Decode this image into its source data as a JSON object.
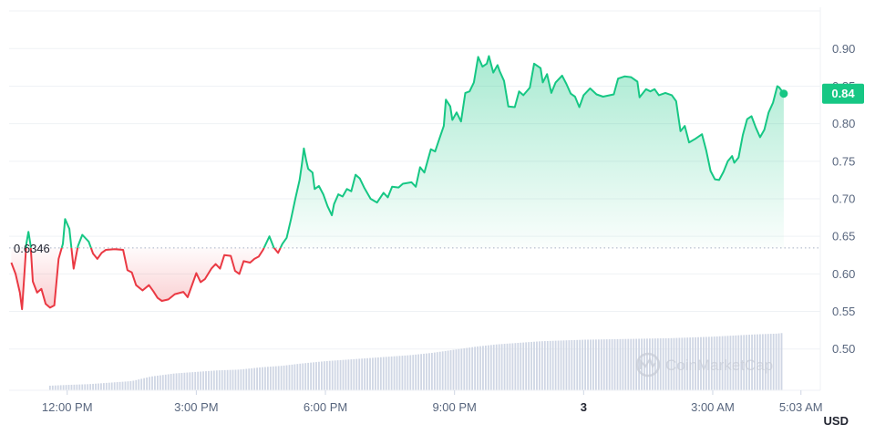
{
  "chart_data": {
    "type": "area",
    "currency": "USD",
    "open_price": 0.6346,
    "open_price_label": "0.6346",
    "current_price": 0.84,
    "current_price_label": "0.84",
    "ylim": [
      0.445,
      0.955
    ],
    "yticks": [
      {
        "value": 0.9,
        "label": "0.90"
      },
      {
        "value": 0.85,
        "label": "0.85"
      },
      {
        "value": 0.8,
        "label": "0.80"
      },
      {
        "value": 0.75,
        "label": "0.75"
      },
      {
        "value": 0.7,
        "label": "0.70"
      },
      {
        "value": 0.65,
        "label": "0.65"
      },
      {
        "value": 0.6,
        "label": "0.60"
      },
      {
        "value": 0.55,
        "label": "0.55"
      },
      {
        "value": 0.5,
        "label": "0.50"
      }
    ],
    "xlim_hours": [
      10.65,
      29.5
    ],
    "xticks": [
      {
        "t": 12.0,
        "label": "12:00 PM",
        "bold": false
      },
      {
        "t": 15.0,
        "label": "3:00 PM",
        "bold": false
      },
      {
        "t": 18.0,
        "label": "6:00 PM",
        "bold": false
      },
      {
        "t": 21.0,
        "label": "9:00 PM",
        "bold": false
      },
      {
        "t": 24.0,
        "label": "3",
        "bold": true
      },
      {
        "t": 27.0,
        "label": "3:00 AM",
        "bold": false
      },
      {
        "t": 29.05,
        "label": "5:03 AM",
        "bold": false
      }
    ],
    "grid": true,
    "colors": {
      "up": "#16c784",
      "down": "#ea3943",
      "volume": "#cfd6e4",
      "grid": "#eff2f5"
    },
    "price_points": [
      [
        10.7,
        0.615
      ],
      [
        10.8,
        0.6
      ],
      [
        10.9,
        0.575
      ],
      [
        10.95,
        0.553
      ],
      [
        11.0,
        0.595
      ],
      [
        11.05,
        0.64
      ],
      [
        11.1,
        0.656
      ],
      [
        11.15,
        0.638
      ],
      [
        11.2,
        0.59
      ],
      [
        11.3,
        0.575
      ],
      [
        11.4,
        0.58
      ],
      [
        11.5,
        0.56
      ],
      [
        11.6,
        0.555
      ],
      [
        11.7,
        0.558
      ],
      [
        11.8,
        0.62
      ],
      [
        11.9,
        0.64
      ],
      [
        11.95,
        0.673
      ],
      [
        12.05,
        0.66
      ],
      [
        12.15,
        0.607
      ],
      [
        12.25,
        0.637
      ],
      [
        12.35,
        0.652
      ],
      [
        12.5,
        0.643
      ],
      [
        12.6,
        0.627
      ],
      [
        12.7,
        0.62
      ],
      [
        12.8,
        0.628
      ],
      [
        12.9,
        0.632
      ],
      [
        13.1,
        0.633
      ],
      [
        13.3,
        0.632
      ],
      [
        13.4,
        0.605
      ],
      [
        13.5,
        0.602
      ],
      [
        13.6,
        0.585
      ],
      [
        13.75,
        0.578
      ],
      [
        13.9,
        0.585
      ],
      [
        14.0,
        0.577
      ],
      [
        14.1,
        0.568
      ],
      [
        14.2,
        0.564
      ],
      [
        14.35,
        0.566
      ],
      [
        14.5,
        0.573
      ],
      [
        14.7,
        0.576
      ],
      [
        14.8,
        0.569
      ],
      [
        15.0,
        0.601
      ],
      [
        15.1,
        0.589
      ],
      [
        15.2,
        0.593
      ],
      [
        15.35,
        0.607
      ],
      [
        15.45,
        0.613
      ],
      [
        15.55,
        0.607
      ],
      [
        15.65,
        0.625
      ],
      [
        15.8,
        0.624
      ],
      [
        15.9,
        0.604
      ],
      [
        16.0,
        0.6
      ],
      [
        16.1,
        0.617
      ],
      [
        16.25,
        0.615
      ],
      [
        16.35,
        0.62
      ],
      [
        16.45,
        0.623
      ],
      [
        16.55,
        0.632
      ],
      [
        16.7,
        0.65
      ],
      [
        16.8,
        0.635
      ],
      [
        16.9,
        0.628
      ],
      [
        17.0,
        0.64
      ],
      [
        17.1,
        0.648
      ],
      [
        17.2,
        0.673
      ],
      [
        17.3,
        0.7
      ],
      [
        17.4,
        0.725
      ],
      [
        17.45,
        0.745
      ],
      [
        17.5,
        0.767
      ],
      [
        17.55,
        0.752
      ],
      [
        17.6,
        0.74
      ],
      [
        17.7,
        0.735
      ],
      [
        17.75,
        0.713
      ],
      [
        17.85,
        0.717
      ],
      [
        17.95,
        0.706
      ],
      [
        18.05,
        0.69
      ],
      [
        18.15,
        0.678
      ],
      [
        18.2,
        0.693
      ],
      [
        18.3,
        0.706
      ],
      [
        18.4,
        0.703
      ],
      [
        18.5,
        0.713
      ],
      [
        18.6,
        0.71
      ],
      [
        18.7,
        0.732
      ],
      [
        18.8,
        0.727
      ],
      [
        18.9,
        0.715
      ],
      [
        19.05,
        0.7
      ],
      [
        19.2,
        0.695
      ],
      [
        19.35,
        0.708
      ],
      [
        19.45,
        0.702
      ],
      [
        19.55,
        0.716
      ],
      [
        19.7,
        0.715
      ],
      [
        19.8,
        0.72
      ],
      [
        20.0,
        0.722
      ],
      [
        20.1,
        0.716
      ],
      [
        20.2,
        0.742
      ],
      [
        20.3,
        0.735
      ],
      [
        20.45,
        0.766
      ],
      [
        20.55,
        0.763
      ],
      [
        20.65,
        0.78
      ],
      [
        20.75,
        0.797
      ],
      [
        20.8,
        0.832
      ],
      [
        20.9,
        0.823
      ],
      [
        20.95,
        0.805
      ],
      [
        21.05,
        0.815
      ],
      [
        21.15,
        0.803
      ],
      [
        21.25,
        0.841
      ],
      [
        21.35,
        0.843
      ],
      [
        21.45,
        0.855
      ],
      [
        21.55,
        0.889
      ],
      [
        21.65,
        0.876
      ],
      [
        21.75,
        0.88
      ],
      [
        21.8,
        0.89
      ],
      [
        21.9,
        0.868
      ],
      [
        22.0,
        0.878
      ],
      [
        22.05,
        0.87
      ],
      [
        22.15,
        0.857
      ],
      [
        22.25,
        0.823
      ],
      [
        22.4,
        0.822
      ],
      [
        22.5,
        0.843
      ],
      [
        22.6,
        0.838
      ],
      [
        22.75,
        0.848
      ],
      [
        22.85,
        0.88
      ],
      [
        23.0,
        0.874
      ],
      [
        23.05,
        0.855
      ],
      [
        23.15,
        0.866
      ],
      [
        23.25,
        0.841
      ],
      [
        23.35,
        0.855
      ],
      [
        23.5,
        0.864
      ],
      [
        23.6,
        0.853
      ],
      [
        23.7,
        0.84
      ],
      [
        23.8,
        0.836
      ],
      [
        23.9,
        0.822
      ],
      [
        24.0,
        0.838
      ],
      [
        24.15,
        0.847
      ],
      [
        24.3,
        0.839
      ],
      [
        24.45,
        0.836
      ],
      [
        24.7,
        0.839
      ],
      [
        24.8,
        0.86
      ],
      [
        24.95,
        0.863
      ],
      [
        25.1,
        0.862
      ],
      [
        25.25,
        0.856
      ],
      [
        25.3,
        0.835
      ],
      [
        25.45,
        0.846
      ],
      [
        25.55,
        0.843
      ],
      [
        25.65,
        0.846
      ],
      [
        25.75,
        0.838
      ],
      [
        25.9,
        0.841
      ],
      [
        26.05,
        0.838
      ],
      [
        26.15,
        0.83
      ],
      [
        26.25,
        0.79
      ],
      [
        26.35,
        0.797
      ],
      [
        26.45,
        0.775
      ],
      [
        26.6,
        0.78
      ],
      [
        26.75,
        0.786
      ],
      [
        26.85,
        0.764
      ],
      [
        26.95,
        0.737
      ],
      [
        27.05,
        0.726
      ],
      [
        27.15,
        0.725
      ],
      [
        27.25,
        0.736
      ],
      [
        27.35,
        0.75
      ],
      [
        27.45,
        0.757
      ],
      [
        27.5,
        0.748
      ],
      [
        27.6,
        0.755
      ],
      [
        27.7,
        0.785
      ],
      [
        27.8,
        0.806
      ],
      [
        27.9,
        0.81
      ],
      [
        28.0,
        0.795
      ],
      [
        28.1,
        0.782
      ],
      [
        28.2,
        0.792
      ],
      [
        28.3,
        0.815
      ],
      [
        28.4,
        0.828
      ],
      [
        28.5,
        0.85
      ],
      [
        28.55,
        0.848
      ],
      [
        28.65,
        0.84
      ]
    ],
    "volume_points": [
      [
        11.6,
        0.06
      ],
      [
        12.0,
        0.07
      ],
      [
        12.5,
        0.08
      ],
      [
        13.0,
        0.1
      ],
      [
        13.5,
        0.12
      ],
      [
        13.95,
        0.18
      ],
      [
        14.5,
        0.22
      ],
      [
        15.0,
        0.24
      ],
      [
        15.5,
        0.26
      ],
      [
        16.0,
        0.27
      ],
      [
        16.5,
        0.3
      ],
      [
        17.0,
        0.32
      ],
      [
        17.45,
        0.35
      ],
      [
        18.0,
        0.38
      ],
      [
        18.5,
        0.4
      ],
      [
        19.0,
        0.42
      ],
      [
        19.5,
        0.44
      ],
      [
        20.0,
        0.46
      ],
      [
        20.5,
        0.49
      ],
      [
        21.0,
        0.53
      ],
      [
        21.5,
        0.57
      ],
      [
        22.0,
        0.6
      ],
      [
        22.5,
        0.62
      ],
      [
        23.0,
        0.64
      ],
      [
        23.5,
        0.65
      ],
      [
        24.0,
        0.66
      ],
      [
        25.0,
        0.67
      ],
      [
        26.0,
        0.68
      ],
      [
        27.0,
        0.7
      ],
      [
        28.0,
        0.73
      ],
      [
        28.5,
        0.74
      ],
      [
        28.65,
        0.75
      ]
    ]
  }
}
